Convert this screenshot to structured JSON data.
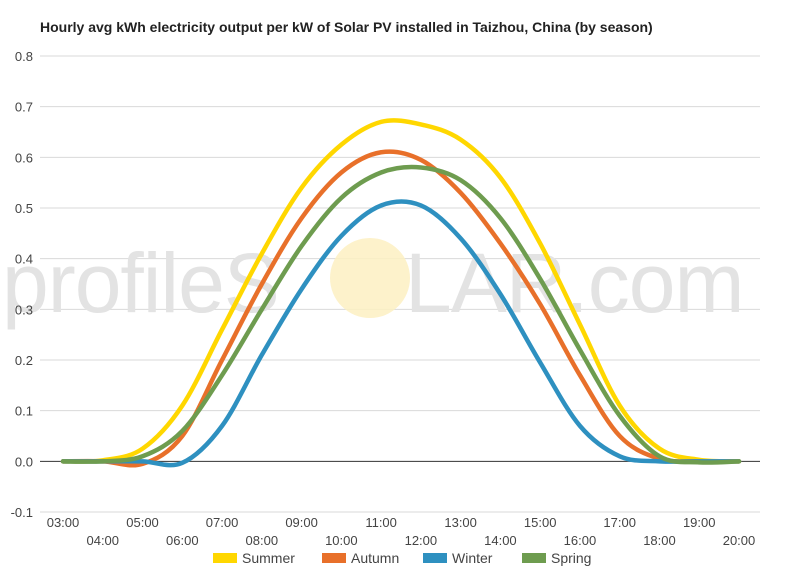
{
  "watermark": {
    "left": "profileS",
    "right": "LAR.com"
  },
  "chart_data": {
    "type": "line",
    "title": "Hourly avg kWh electricity output per kW of Solar PV installed in Taizhou, China (by season)",
    "xlabel": "",
    "ylabel": "",
    "ylim": [
      -0.1,
      0.8
    ],
    "yticks": [
      -0.1,
      0.0,
      0.1,
      0.2,
      0.3,
      0.4,
      0.5,
      0.6,
      0.7,
      0.8
    ],
    "ytick_labels": [
      "-0.1",
      "0.0",
      "0.1",
      "0.2",
      "0.3",
      "0.4",
      "0.5",
      "0.6",
      "0.7",
      "0.8"
    ],
    "grid": true,
    "legend": "bottom",
    "x": [
      "03:00",
      "04:00",
      "05:00",
      "06:00",
      "07:00",
      "08:00",
      "09:00",
      "10:00",
      "11:00",
      "12:00",
      "13:00",
      "14:00",
      "15:00",
      "16:00",
      "17:00",
      "18:00",
      "19:00",
      "20:00"
    ],
    "series": [
      {
        "name": "Summer",
        "color": "#FFD700",
        "values": [
          0.0,
          0.002,
          0.025,
          0.11,
          0.26,
          0.41,
          0.54,
          0.625,
          0.67,
          0.665,
          0.635,
          0.56,
          0.43,
          0.27,
          0.11,
          0.025,
          0.003,
          0.0
        ]
      },
      {
        "name": "Autumn",
        "color": "#E8702A",
        "values": [
          0.0,
          0.0,
          -0.005,
          0.05,
          0.2,
          0.35,
          0.48,
          0.57,
          0.61,
          0.595,
          0.53,
          0.43,
          0.31,
          0.17,
          0.05,
          0.005,
          0.0,
          0.0
        ]
      },
      {
        "name": "Winter",
        "color": "#2E90C0",
        "values": [
          0.0,
          0.0,
          0.0,
          -0.003,
          0.07,
          0.21,
          0.34,
          0.445,
          0.505,
          0.505,
          0.44,
          0.33,
          0.195,
          0.07,
          0.01,
          0.0,
          0.0,
          0.0
        ]
      },
      {
        "name": "Spring",
        "color": "#6E9C4F",
        "values": [
          0.0,
          0.0,
          0.01,
          0.06,
          0.17,
          0.3,
          0.425,
          0.52,
          0.57,
          0.58,
          0.555,
          0.48,
          0.36,
          0.22,
          0.09,
          0.01,
          -0.002,
          0.0
        ]
      }
    ]
  }
}
